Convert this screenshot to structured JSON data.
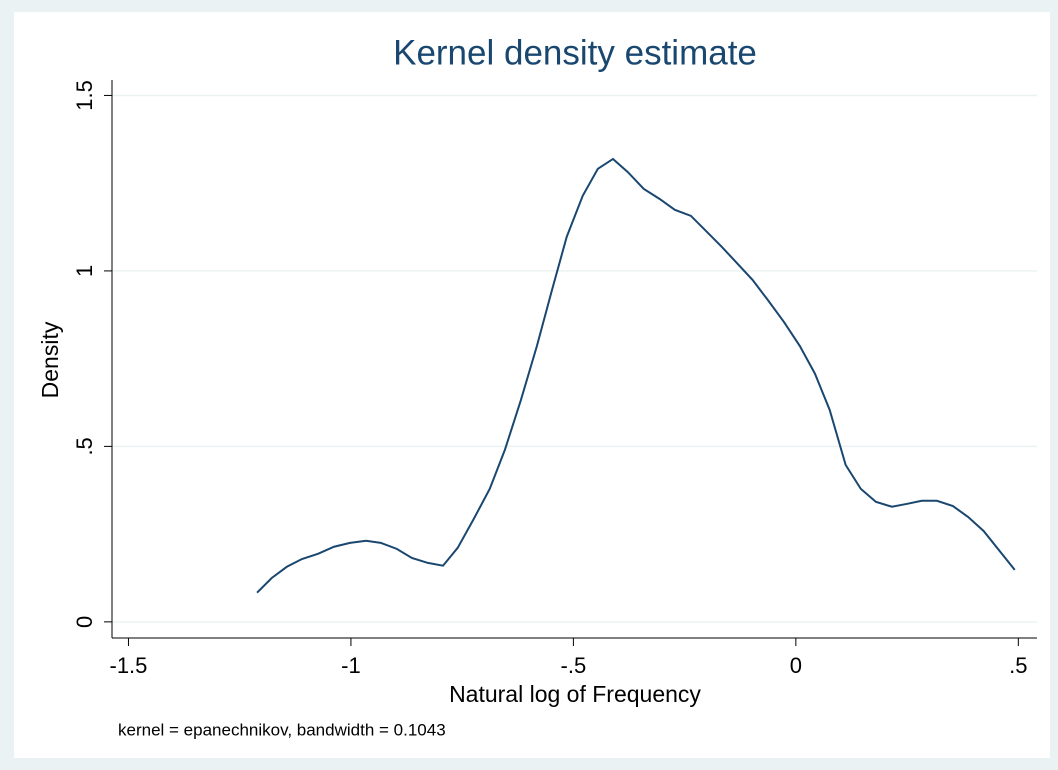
{
  "chart_data": {
    "type": "line",
    "title": "Kernel density estimate",
    "xlabel": "Natural log of Frequency",
    "ylabel": "Density",
    "note": "kernel = epanechnikov, bandwidth = 0.1043",
    "color": "#1a476f",
    "grid": true,
    "xlim": [
      -1.537,
      0.542
    ],
    "ylim": [
      -0.046,
      1.544
    ],
    "xticks": [
      {
        "value": -1.5,
        "label": "-1.5"
      },
      -1,
      {
        "value": -0.5,
        "label": "-.5"
      },
      0,
      {
        "value": 0.5,
        "label": ".5"
      }
    ],
    "yticks": [
      0,
      {
        "value": 0.5,
        "label": ".5"
      },
      1,
      1.5
    ],
    "x": [
      -1.211,
      -1.178,
      -1.144,
      -1.11,
      -1.074,
      -1.038,
      -1.002,
      -0.966,
      -0.933,
      -0.897,
      -0.863,
      -0.827,
      -0.793,
      -0.76,
      -0.724,
      -0.688,
      -0.654,
      -0.618,
      -0.582,
      -0.548,
      -0.515,
      -0.479,
      -0.445,
      -0.411,
      -0.378,
      -0.342,
      -0.306,
      -0.272,
      -0.236,
      -0.202,
      -0.166,
      -0.133,
      -0.097,
      -0.063,
      -0.027,
      0.009,
      0.043,
      0.076,
      0.112,
      0.146,
      0.18,
      0.216,
      0.249,
      0.283,
      0.317,
      0.353,
      0.387,
      0.422,
      0.456,
      0.492
    ],
    "values": [
      0.083,
      0.125,
      0.157,
      0.179,
      0.194,
      0.214,
      0.225,
      0.231,
      0.225,
      0.208,
      0.182,
      0.168,
      0.16,
      0.211,
      0.293,
      0.379,
      0.49,
      0.632,
      0.786,
      0.946,
      1.097,
      1.214,
      1.291,
      1.319,
      1.282,
      1.234,
      1.205,
      1.174,
      1.157,
      1.114,
      1.068,
      1.023,
      0.974,
      0.917,
      0.855,
      0.786,
      0.707,
      0.604,
      0.447,
      0.379,
      0.342,
      0.328,
      0.336,
      0.345,
      0.345,
      0.33,
      0.299,
      0.259,
      0.205,
      0.148
    ]
  }
}
